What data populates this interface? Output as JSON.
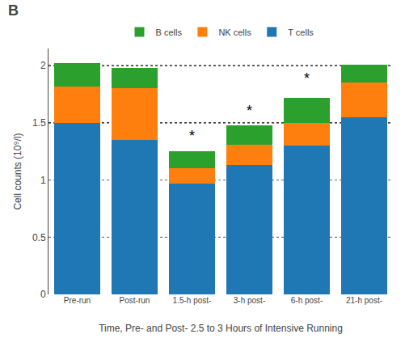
{
  "chart_data": {
    "type": "bar",
    "title": "B",
    "categories": [
      "Pre-run",
      "Post-run",
      "1.5-h post-",
      "3-h post-",
      "6-h post-",
      "21-h post-"
    ],
    "series": [
      {
        "name": "T cells",
        "values": [
          1.5,
          1.35,
          0.97,
          1.13,
          1.3,
          1.55
        ]
      },
      {
        "name": "NK cells",
        "values": [
          0.32,
          0.45,
          0.13,
          0.18,
          0.2,
          0.3
        ]
      },
      {
        "name": "B cells",
        "values": [
          0.2,
          0.18,
          0.15,
          0.17,
          0.22,
          0.16
        ]
      }
    ],
    "stacked": true,
    "xlabel": "Time, Pre- and Post- 2.5 to 3 Hours of Intensive Running",
    "ylabel": "Cell counts (10⁹/l)",
    "ylim": [
      0,
      2.15
    ],
    "yticks": [
      0,
      0.5,
      1,
      1.5,
      2
    ],
    "grid": false,
    "legend": "top",
    "reference_lines": [
      {
        "y": 2.0,
        "color": "black"
      },
      {
        "y": 1.5,
        "color": "black"
      },
      {
        "y": 0.5,
        "color": "gray"
      },
      {
        "y": 1.0,
        "color": "gray"
      }
    ],
    "annotations": [
      {
        "text": "*",
        "x": "1.5-h post-",
        "y": 1.3
      },
      {
        "text": "*",
        "x": "3-h post-",
        "y": 1.52
      },
      {
        "text": "*",
        "x": "6-h post-",
        "y": 1.8
      }
    ]
  }
}
